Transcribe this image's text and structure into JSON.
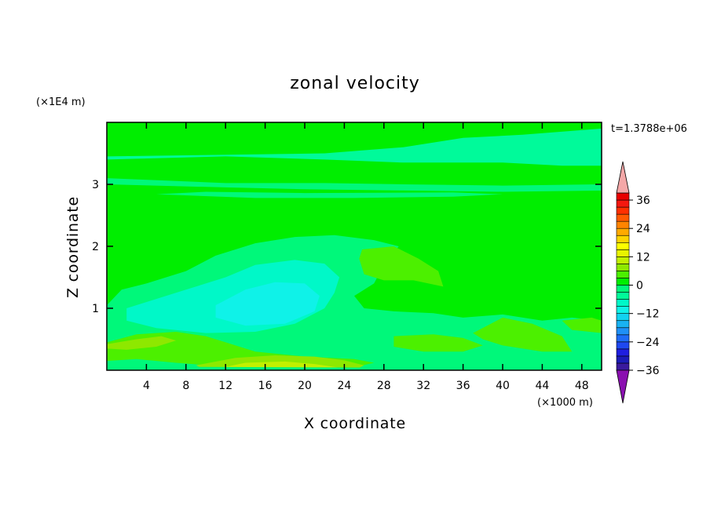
{
  "chart_data": {
    "type": "heatmap",
    "title": "zonal velocity",
    "xlabel": "X coordinate",
    "ylabel": "Z coordinate",
    "x_unit": "(×1000 m)",
    "y_unit": "(×1E4 m)",
    "time_label": "t=1.3788e+06",
    "xlim": [
      0,
      50
    ],
    "ylim": [
      0,
      4
    ],
    "xticks": [
      4,
      8,
      12,
      16,
      20,
      24,
      28,
      32,
      36,
      40,
      44,
      48
    ],
    "yticks": [
      1,
      2,
      3
    ],
    "colorbar": {
      "levels": [
        -39,
        -36,
        -33,
        -30,
        -27,
        -24,
        -21,
        -18,
        -15,
        -12,
        -9,
        -6,
        -3,
        0,
        3,
        6,
        9,
        12,
        15,
        18,
        21,
        24,
        27,
        30,
        33,
        36,
        39
      ],
      "tick_labels": [
        36,
        24,
        12,
        0,
        -12,
        -24,
        -36
      ],
      "colors": [
        "#7a0a9e",
        "#3a1a9e",
        "#1c1cb8",
        "#1f1fe0",
        "#1f48f0",
        "#1e6cf6",
        "#1f90f6",
        "#19b2f2",
        "#12d2f0",
        "#0ff2e8",
        "#00f8c8",
        "#00fa9a",
        "#00f87a",
        "#00ee00",
        "#4cf000",
        "#8ee800",
        "#c2f000",
        "#e8f400",
        "#ffff00",
        "#ffd400",
        "#ffaa00",
        "#ff8400",
        "#ff5a00",
        "#ff3000",
        "#f41810",
        "#e80000",
        "#f4a8a8"
      ],
      "max_arrow_color": "#f4a8a8",
      "min_arrow_color": "#8a10b0"
    },
    "regions": [
      {
        "value": 1,
        "pts": [
          [
            0,
            0
          ],
          [
            50,
            0
          ],
          [
            50,
            4
          ],
          [
            0,
            4
          ]
        ]
      },
      {
        "value": -4,
        "pts": [
          [
            0,
            3.45
          ],
          [
            22,
            3.5
          ],
          [
            30,
            3.6
          ],
          [
            36,
            3.75
          ],
          [
            42,
            3.8
          ],
          [
            50,
            3.9
          ],
          [
            50,
            3.3
          ],
          [
            46,
            3.3
          ],
          [
            40,
            3.35
          ],
          [
            30,
            3.35
          ],
          [
            22,
            3.4
          ],
          [
            12,
            3.45
          ],
          [
            0,
            3.4
          ]
        ]
      },
      {
        "value": -3,
        "pts": [
          [
            0,
            3.1
          ],
          [
            12,
            3.02
          ],
          [
            22,
            3.02
          ],
          [
            30,
            3.0
          ],
          [
            40,
            2.98
          ],
          [
            50,
            3.0
          ],
          [
            50,
            2.9
          ],
          [
            40,
            2.88
          ],
          [
            30,
            2.9
          ],
          [
            20,
            2.92
          ],
          [
            12,
            2.95
          ],
          [
            0,
            3.0
          ]
        ]
      },
      {
        "value": -3,
        "pts": [
          [
            5,
            2.84
          ],
          [
            15,
            2.78
          ],
          [
            25,
            2.78
          ],
          [
            35,
            2.8
          ],
          [
            40,
            2.84
          ],
          [
            35,
            2.87
          ],
          [
            20,
            2.86
          ],
          [
            10,
            2.88
          ]
        ]
      },
      {
        "value": -3,
        "pts": [
          [
            0,
            1.05
          ],
          [
            1.5,
            1.3
          ],
          [
            4,
            1.4
          ],
          [
            8,
            1.6
          ],
          [
            11,
            1.85
          ],
          [
            15,
            2.05
          ],
          [
            19,
            2.15
          ],
          [
            23,
            2.18
          ],
          [
            27,
            2.1
          ],
          [
            29.5,
            2.0
          ],
          [
            28,
            1.7
          ],
          [
            27,
            1.4
          ],
          [
            25,
            1.2
          ],
          [
            26,
            1.0
          ],
          [
            29,
            0.95
          ],
          [
            33,
            0.92
          ],
          [
            36,
            0.85
          ],
          [
            40,
            0.9
          ],
          [
            44,
            0.8
          ],
          [
            47,
            0.85
          ],
          [
            50,
            0.8
          ],
          [
            50,
            0
          ],
          [
            0,
            0
          ]
        ]
      },
      {
        "value": -8,
        "pts": [
          [
            2,
            1.0
          ],
          [
            5,
            1.15
          ],
          [
            8,
            1.3
          ],
          [
            12,
            1.5
          ],
          [
            15,
            1.7
          ],
          [
            19,
            1.78
          ],
          [
            22,
            1.72
          ],
          [
            23.5,
            1.5
          ],
          [
            23,
            1.25
          ],
          [
            22,
            1.0
          ],
          [
            19,
            0.75
          ],
          [
            15,
            0.62
          ],
          [
            10,
            0.6
          ],
          [
            5,
            0.68
          ],
          [
            2,
            0.8
          ]
        ]
      },
      {
        "value": -11,
        "pts": [
          [
            11,
            1.05
          ],
          [
            14,
            1.3
          ],
          [
            17,
            1.42
          ],
          [
            20,
            1.4
          ],
          [
            21.5,
            1.2
          ],
          [
            21,
            0.95
          ],
          [
            18,
            0.75
          ],
          [
            14,
            0.72
          ],
          [
            11,
            0.85
          ]
        ]
      },
      {
        "value": 4,
        "pts": [
          [
            0,
            0.45
          ],
          [
            3,
            0.58
          ],
          [
            7,
            0.62
          ],
          [
            10,
            0.55
          ],
          [
            12,
            0.45
          ],
          [
            15,
            0.3
          ],
          [
            20,
            0.22
          ],
          [
            25,
            0.18
          ],
          [
            27,
            0.12
          ],
          [
            25,
            0.05
          ],
          [
            20,
            0.05
          ],
          [
            12,
            0.06
          ],
          [
            7,
            0.12
          ],
          [
            3,
            0.18
          ],
          [
            0,
            0.15
          ]
        ]
      },
      {
        "value": 7,
        "pts": [
          [
            0,
            0.42
          ],
          [
            3,
            0.5
          ],
          [
            5.5,
            0.55
          ],
          [
            7,
            0.48
          ],
          [
            5,
            0.38
          ],
          [
            2,
            0.33
          ],
          [
            0,
            0.35
          ]
        ]
      },
      {
        "value": 7,
        "pts": [
          [
            9,
            0.08
          ],
          [
            13,
            0.2
          ],
          [
            17,
            0.24
          ],
          [
            21,
            0.22
          ],
          [
            24,
            0.16
          ],
          [
            26,
            0.08
          ],
          [
            25,
            0
          ],
          [
            10,
            0
          ]
        ]
      },
      {
        "value": 10,
        "pts": [
          [
            11,
            0.02
          ],
          [
            14,
            0.12
          ],
          [
            18,
            0.14
          ],
          [
            21,
            0.1
          ],
          [
            24,
            0.03
          ],
          [
            23,
            0
          ],
          [
            12,
            0
          ]
        ]
      },
      {
        "value": -3,
        "pts": [
          [
            0,
            0.06
          ],
          [
            30,
            0.04
          ],
          [
            50,
            0.05
          ],
          [
            50,
            0
          ],
          [
            0,
            0
          ]
        ]
      },
      {
        "value": 4,
        "pts": [
          [
            25.8,
            1.95
          ],
          [
            29,
            2.0
          ],
          [
            31.5,
            1.8
          ],
          [
            33.5,
            1.6
          ],
          [
            34,
            1.35
          ],
          [
            31,
            1.45
          ],
          [
            28,
            1.45
          ],
          [
            26,
            1.55
          ],
          [
            25.5,
            1.8
          ]
        ]
      },
      {
        "value": 4,
        "pts": [
          [
            29,
            0.55
          ],
          [
            33,
            0.58
          ],
          [
            36,
            0.52
          ],
          [
            38,
            0.4
          ],
          [
            36,
            0.3
          ],
          [
            32,
            0.3
          ],
          [
            29,
            0.38
          ]
        ]
      },
      {
        "value": 4,
        "pts": [
          [
            37,
            0.6
          ],
          [
            40,
            0.85
          ],
          [
            43,
            0.75
          ],
          [
            46,
            0.55
          ],
          [
            47,
            0.3
          ],
          [
            44,
            0.3
          ],
          [
            40,
            0.4
          ],
          [
            38,
            0.5
          ]
        ]
      },
      {
        "value": 4,
        "pts": [
          [
            46,
            0.8
          ],
          [
            49,
            0.85
          ],
          [
            50,
            0.8
          ],
          [
            50,
            0.6
          ],
          [
            47,
            0.65
          ]
        ]
      }
    ]
  }
}
